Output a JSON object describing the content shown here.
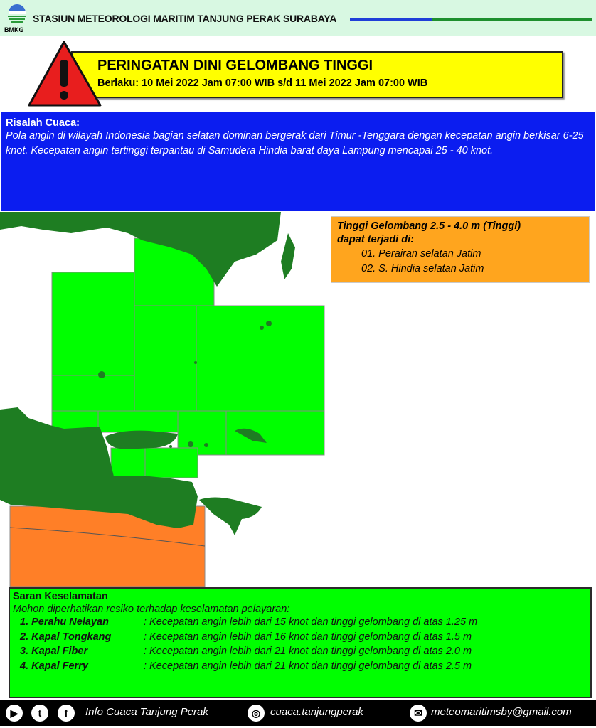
{
  "header": {
    "station": "STASIUN METEOROLOGI MARITIM TANJUNG PERAK SURABAYA",
    "logo_text": "BMKG"
  },
  "warning": {
    "title": "PERINGATAN DINI GELOMBANG TINGGI",
    "validity": "Berlaku: 10 Mei 2022 Jam 07:00 WIB s/d 11 Mei 2022 Jam 07:00 WIB",
    "icon": "warning-triangle-icon"
  },
  "weather": {
    "title": "Risalah Cuaca:",
    "body": "Pola angin di wilayah Indonesia bagian selatan dominan bergerak dari Timur -Tenggara dengan kecepatan angin berkisar 6-25 knot. Kecepatan angin tertinggi terpantau di Samudera Hindia barat daya Lampung mencapai 25 - 40 knot."
  },
  "wave_info": {
    "heading": "Tinggi Gelombang 2.5 - 4.0 m (Tinggi)",
    "subheading": "dapat terjadi di:",
    "areas": [
      "01. Perairan selatan Jatim",
      "02. S. Hindia selatan Jatim"
    ]
  },
  "colors": {
    "land": "#1e7d22",
    "low_zone": "#00ff00",
    "high_zone": "#ff7f27",
    "warning_box": "#ffff00",
    "weather_box": "#0b1df0"
  },
  "safety": {
    "title": "Saran Keselamatan",
    "subtitle": "Mohon diperhatikan resiko terhadap keselamatan pelayaran:",
    "items": [
      {
        "vessel": "1. Perahu Nelayan",
        "text": ": Kecepatan angin lebih dari 15 knot dan tinggi gelombang di atas 1.25 m"
      },
      {
        "vessel": "2. Kapal Tongkang",
        "text": ": Kecepatan angin lebih dari 16 knot dan tinggi gelombang di atas 1.5 m"
      },
      {
        "vessel": "3. Kapal Fiber",
        "text": ": Kecepatan angin lebih dari 21 knot dan tinggi gelombang di atas 2.0 m"
      },
      {
        "vessel": "4. Kapal Ferry",
        "text": ": Kecepatan angin lebih dari 21 knot dan tinggi gelombang di atas 2.5 m"
      }
    ]
  },
  "footer": {
    "social_name": "Info Cuaca Tanjung Perak",
    "instagram": "cuaca.tanjungperak",
    "email": "meteomaritimsby@gmail.com"
  }
}
